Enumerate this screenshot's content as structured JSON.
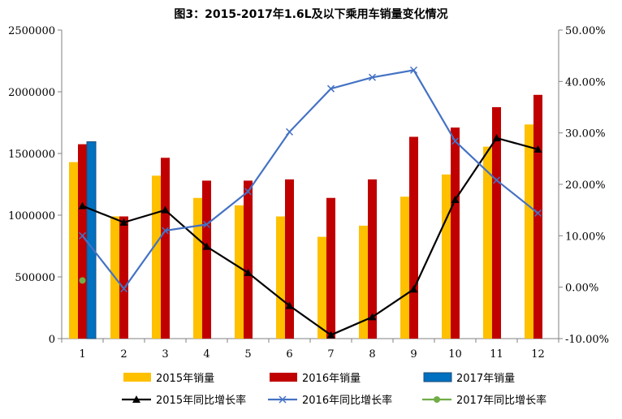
{
  "chart_data": {
    "type": "bar",
    "title": "图3：2015-2017年1.6L及以下乘用车销量变化情况",
    "categories": [
      "1",
      "2",
      "3",
      "4",
      "5",
      "6",
      "7",
      "8",
      "9",
      "10",
      "11",
      "12"
    ],
    "y_left": {
      "min": 0,
      "max": 2500000,
      "step": 500000,
      "ticks": [
        "0",
        "500000",
        "1000000",
        "1500000",
        "2000000",
        "2500000"
      ]
    },
    "y_right": {
      "min": -10,
      "max": 50,
      "step": 10,
      "ticks": [
        "-10.00%",
        "0.00%",
        "10.00%",
        "20.00%",
        "30.00%",
        "40.00%",
        "50.00%"
      ]
    },
    "bar_series": [
      {
        "name": "2015年销量",
        "color": "#FFC000",
        "values": [
          1430000,
          990000,
          1320000,
          1140000,
          1080000,
          990000,
          825000,
          915000,
          1150000,
          1330000,
          1555000,
          1735000
        ]
      },
      {
        "name": "2016年销量",
        "color": "#C00000",
        "values": [
          1575000,
          990000,
          1465000,
          1280000,
          1280000,
          1290000,
          1140000,
          1290000,
          1635000,
          1710000,
          1875000,
          1975000
        ]
      },
      {
        "name": "2017年销量",
        "color": "#0070C0",
        "values": [
          1595000,
          null,
          null,
          null,
          null,
          null,
          null,
          null,
          null,
          null,
          null,
          null
        ]
      }
    ],
    "line_series": [
      {
        "name": "2015年同比增长率",
        "color": "#000000",
        "marker": "triangle",
        "values": [
          15.8,
          12.6,
          15.0,
          7.9,
          2.8,
          -3.6,
          -9.3,
          -5.8,
          -0.4,
          17.0,
          29.0,
          26.8
        ]
      },
      {
        "name": "2016年同比增长率",
        "color": "#4472C4",
        "marker": "x",
        "values": [
          10.0,
          -0.3,
          11.0,
          12.2,
          18.6,
          30.2,
          38.6,
          40.8,
          42.2,
          28.4,
          20.8,
          14.4
        ]
      },
      {
        "name": "2017年同比增长率",
        "color": "#70AD47",
        "marker": "circle",
        "values": [
          1.3,
          null,
          null,
          null,
          null,
          null,
          null,
          null,
          null,
          null,
          null,
          null
        ]
      }
    ],
    "grid": false,
    "legend_position": "bottom"
  }
}
